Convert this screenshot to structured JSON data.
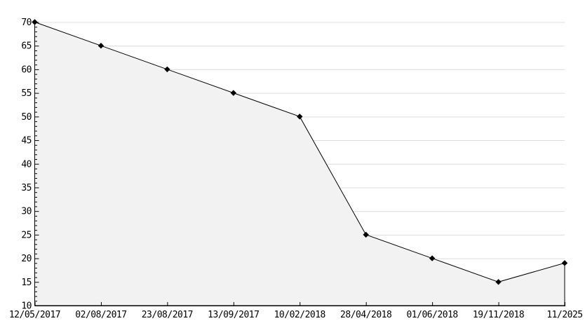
{
  "chart_data": {
    "type": "area",
    "title": "",
    "xlabel": "",
    "ylabel": "",
    "x_labels": [
      "12/05/2017",
      "02/08/2017",
      "23/08/2017",
      "13/09/2017",
      "10/02/2018",
      "28/04/2018",
      "01/06/2018",
      "19/11/2018",
      "11/2025"
    ],
    "values": [
      70,
      65,
      60,
      55,
      50,
      25,
      20,
      15,
      19
    ],
    "ylim": [
      10,
      70
    ],
    "y_tick_step": 5,
    "y_minor_step": 1,
    "y_tick_labels": [
      "10",
      "15",
      "20",
      "25",
      "30",
      "35",
      "40",
      "45",
      "50",
      "55",
      "60",
      "65",
      "70"
    ],
    "grid": true,
    "legend": "none",
    "marker": "diamond",
    "colors": {
      "background": "#ffffff",
      "fill": "#f2f2f2",
      "grid": "#dcdcdc",
      "line": "#000000",
      "axis": "#000000",
      "text": "#000000"
    }
  }
}
